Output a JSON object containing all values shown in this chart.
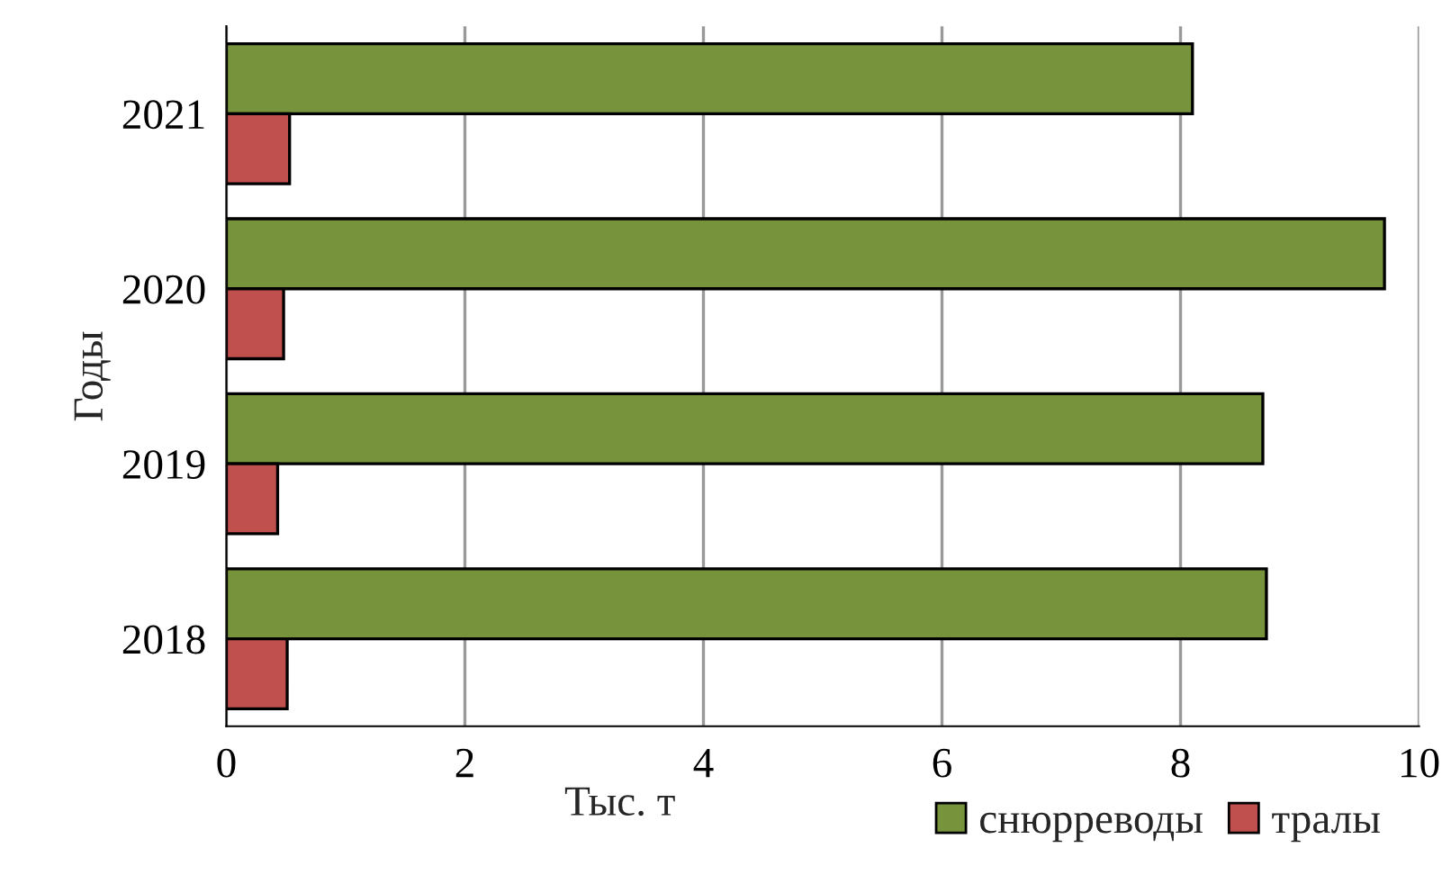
{
  "chart_data": {
    "type": "bar",
    "orientation": "horizontal",
    "xlabel": "Тыс. т",
    "ylabel": "Годы",
    "categories": [
      "2021",
      "2020",
      "2019",
      "2018"
    ],
    "series": [
      {
        "name": "снюрреводы",
        "color": "#77933c",
        "values": [
          8.1,
          9.71,
          8.69,
          8.72
        ]
      },
      {
        "name": "тралы",
        "color": "#c0504d",
        "values": [
          0.53,
          0.48,
          0.43,
          0.51
        ]
      }
    ],
    "xlim": [
      0,
      10
    ],
    "xticks": [
      0,
      2,
      4,
      6,
      8,
      10
    ],
    "grid": "x",
    "legend": "bottom right"
  }
}
